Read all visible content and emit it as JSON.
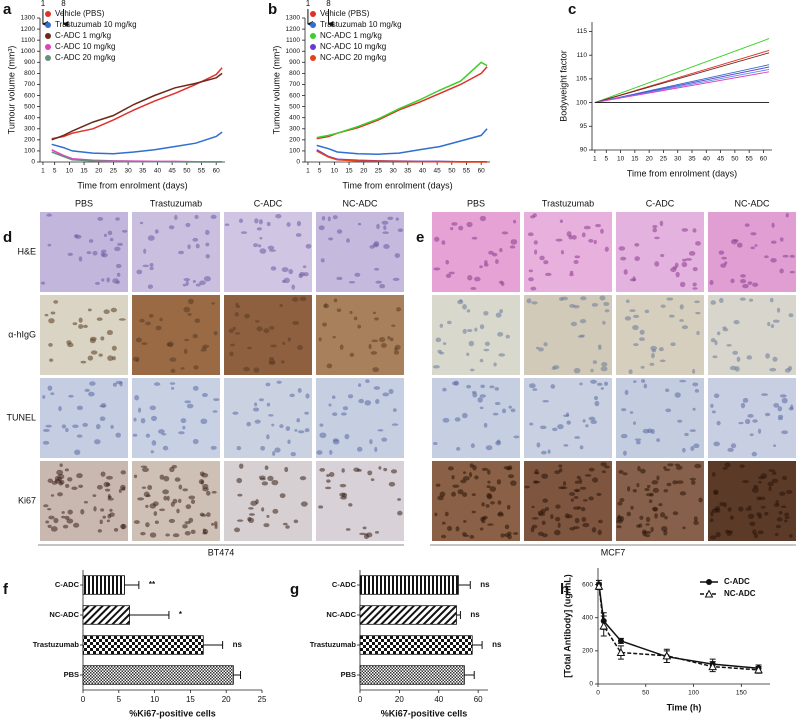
{
  "chart_data": [
    {
      "type": "line",
      "panel_label": "a",
      "ylabel": "Tumour volume (mm³)",
      "xlabel": "Time from enrolment (days)",
      "x": [
        4,
        8,
        11,
        18,
        25,
        32,
        39,
        46,
        53,
        60,
        62
      ],
      "xlim": [
        0,
        63
      ],
      "xticks": [
        1,
        5,
        10,
        15,
        20,
        25,
        30,
        35,
        40,
        45,
        50,
        55,
        60
      ],
      "ylim": [
        0,
        1300
      ],
      "yticks": [
        0,
        100,
        200,
        300,
        400,
        500,
        600,
        700,
        800,
        900,
        1000,
        1100,
        1200,
        1300
      ],
      "arrows": [
        1,
        8
      ],
      "legend": "upper left",
      "series": [
        {
          "name": "Vehicle (PBS)",
          "color": "#e0302a",
          "values": [
            210,
            230,
            260,
            300,
            380,
            470,
            550,
            620,
            700,
            790,
            850
          ]
        },
        {
          "name": "Trastuzumab 10 mg/kg",
          "color": "#2f6fd0",
          "values": [
            160,
            130,
            100,
            80,
            75,
            90,
            110,
            140,
            170,
            230,
            270
          ]
        },
        {
          "name": "C-ADC 1 mg/kg",
          "color": "#6b2a1a",
          "values": [
            200,
            240,
            280,
            360,
            420,
            520,
            600,
            670,
            710,
            760,
            800
          ]
        },
        {
          "name": "C-ADC 10 mg/kg",
          "color": "#e040c0",
          "values": [
            110,
            60,
            30,
            15,
            10,
            8,
            5,
            5,
            3,
            2,
            2
          ]
        },
        {
          "name": "C-ADC 20 mg/kg",
          "color": "#6a8f80",
          "values": [
            90,
            50,
            20,
            10,
            5,
            3,
            2,
            1,
            0,
            0,
            0
          ]
        }
      ]
    },
    {
      "type": "line",
      "panel_label": "b",
      "ylabel": "Tumour volume (mm³)",
      "xlabel": "Time from enrolment (days)",
      "x": [
        4,
        8,
        11,
        18,
        25,
        32,
        39,
        46,
        53,
        60,
        62
      ],
      "xlim": [
        0,
        63
      ],
      "xticks": [
        1,
        5,
        10,
        15,
        20,
        25,
        30,
        35,
        40,
        45,
        50,
        55,
        60
      ],
      "ylim": [
        0,
        1300
      ],
      "yticks": [
        0,
        100,
        200,
        300,
        400,
        500,
        600,
        700,
        800,
        900,
        1000,
        1100,
        1200,
        1300
      ],
      "arrows": [
        1,
        8
      ],
      "legend": "upper left",
      "series": [
        {
          "name": "Vehicle (PBS)",
          "color": "#e0302a",
          "values": [
            210,
            230,
            260,
            310,
            380,
            470,
            540,
            620,
            700,
            800,
            860
          ]
        },
        {
          "name": "Trastuzumab 10 mg/kg",
          "color": "#2f6fd0",
          "values": [
            150,
            120,
            90,
            75,
            70,
            80,
            110,
            140,
            190,
            240,
            300
          ]
        },
        {
          "name": "NC-ADC 1 mg/kg",
          "color": "#3ccf2a",
          "values": [
            220,
            240,
            260,
            320,
            390,
            480,
            560,
            650,
            730,
            900,
            870
          ]
        },
        {
          "name": "NC-ADC 10 mg/kg",
          "color": "#6a3ad0",
          "values": [
            110,
            50,
            25,
            15,
            10,
            8,
            5,
            5,
            3,
            2,
            2
          ]
        },
        {
          "name": "NC-ADC 20 mg/kg",
          "color": "#e8401a",
          "values": [
            100,
            45,
            20,
            10,
            8,
            5,
            3,
            2,
            0,
            0,
            0
          ]
        }
      ]
    },
    {
      "type": "line",
      "panel_label": "c",
      "ylabel": "Bodyweight factor",
      "xlabel": "Time from enrolment (days)",
      "x": [
        1,
        62
      ],
      "xlim": [
        0,
        63
      ],
      "xticks": [
        1,
        5,
        10,
        15,
        20,
        25,
        30,
        35,
        40,
        45,
        50,
        55,
        60
      ],
      "ylim": [
        90,
        117
      ],
      "yticks": [
        90,
        95,
        100,
        105,
        110,
        115
      ],
      "series": [
        {
          "color": "#3ccf2a",
          "values": [
            100,
            113.5
          ]
        },
        {
          "color": "#e0302a",
          "values": [
            100,
            111
          ]
        },
        {
          "color": "#6b2a1a",
          "values": [
            100,
            110.5
          ]
        },
        {
          "color": "#2f6fd0",
          "values": [
            100,
            108
          ]
        },
        {
          "color": "#6a3ad0",
          "values": [
            100,
            107.5
          ]
        },
        {
          "color": "#4a90e0",
          "values": [
            100,
            107
          ]
        },
        {
          "color": "#e040c0",
          "values": [
            100,
            106.5
          ]
        },
        {
          "color": "#111111",
          "values": [
            100,
            100
          ]
        }
      ]
    },
    {
      "type": "hbar",
      "panel_label": "f",
      "xlabel": "%Ki67-positive cells",
      "categories": [
        "C-ADC",
        "NC-ADC",
        "Trastuzumab",
        "PBS"
      ],
      "values": [
        5.8,
        6.5,
        16.8,
        21
      ],
      "errors": [
        2,
        5.5,
        2.7,
        1
      ],
      "annotations": [
        "**",
        "*",
        "ns",
        null
      ],
      "xlim": [
        0,
        25
      ],
      "xticks": [
        0,
        5,
        10,
        15,
        20,
        25
      ]
    },
    {
      "type": "hbar",
      "panel_label": "g",
      "xlabel": "%Ki67-positive cells",
      "categories": [
        "C-ADC",
        "NC-ADC",
        "Trastuzumab",
        "PBS"
      ],
      "values": [
        50,
        49,
        57,
        53
      ],
      "errors": [
        6,
        2,
        5,
        5
      ],
      "annotations": [
        "ns",
        "ns",
        "ns",
        null
      ],
      "xlim": [
        0,
        65
      ],
      "xticks": [
        0,
        20,
        40,
        60
      ]
    },
    {
      "type": "line",
      "panel_label": "h",
      "ylabel": "[Total Antibody] (ug/mL)",
      "xlabel": "Time (h)",
      "x": [
        1,
        6,
        24,
        72,
        120,
        168
      ],
      "xlim": [
        0,
        180
      ],
      "xticks": [
        0,
        50,
        100,
        150
      ],
      "ylim": [
        0,
        700
      ],
      "yticks": [
        0,
        200,
        400,
        600
      ],
      "legend": "upper right",
      "series": [
        {
          "name": "C-ADC",
          "color": "#111111",
          "marker": "circle",
          "values": [
            600,
            380,
            260,
            165,
            120,
            95
          ],
          "errors": [
            25,
            50,
            15,
            35,
            30,
            20
          ]
        },
        {
          "name": "NC-ADC",
          "color": "#111111",
          "marker": "triangle",
          "dash": true,
          "values": [
            590,
            350,
            190,
            170,
            105,
            85
          ],
          "errors": [
            20,
            60,
            40,
            40,
            30,
            20
          ]
        }
      ]
    }
  ],
  "image_panels": [
    {
      "label": "d",
      "columns": [
        "PBS",
        "Trastuzumab",
        "C-ADC",
        "NC-ADC"
      ],
      "rows": [
        "H&E",
        "α-hIgG",
        "TUNEL",
        "Ki67"
      ],
      "caption": "BT474"
    },
    {
      "label": "e",
      "columns": [
        "PBS",
        "Trastuzumab",
        "C-ADC",
        "NC-ADC"
      ],
      "caption": "MCF7"
    }
  ]
}
